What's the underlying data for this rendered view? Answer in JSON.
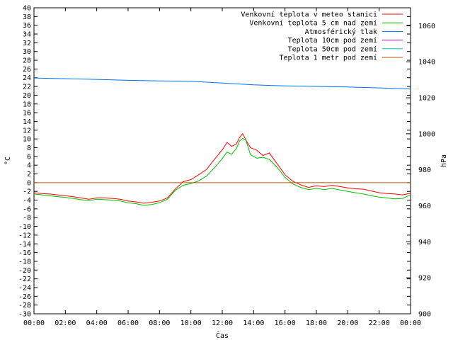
{
  "chart_data": {
    "type": "line",
    "xlabel": "Čas",
    "ylabel_left": "°C",
    "ylabel_right": "hPa",
    "x_ticks": [
      "00:00",
      "02:00",
      "04:00",
      "06:00",
      "08:00",
      "10:00",
      "12:00",
      "14:00",
      "16:00",
      "18:00",
      "20:00",
      "22:00",
      "00:00"
    ],
    "x_range": [
      0,
      24
    ],
    "ylim_left": [
      -30,
      40
    ],
    "ylim_right": [
      900,
      1070
    ],
    "y_ticks_left": [
      40,
      38,
      36,
      34,
      32,
      30,
      28,
      26,
      24,
      22,
      20,
      18,
      16,
      14,
      12,
      10,
      8,
      6,
      4,
      2,
      0,
      -2,
      -4,
      -6,
      -8,
      -10,
      -12,
      -14,
      -16,
      -18,
      -20,
      -22,
      -24,
      -26,
      -28,
      -30
    ],
    "y_ticks_right": [
      1060,
      1040,
      1020,
      1000,
      980,
      960,
      940,
      920,
      900
    ],
    "legend_position": "top-right",
    "grid": false,
    "series": [
      {
        "name": "Venkovní teplota v meteo stanici",
        "color": "#ff0000",
        "axis": "left",
        "x": [
          0,
          0.5,
          1,
          1.5,
          2,
          2.5,
          3,
          3.5,
          4,
          4.5,
          5,
          5.5,
          6,
          6.5,
          7,
          7.5,
          8,
          8.5,
          9,
          9.5,
          10,
          10.5,
          11,
          11.5,
          12,
          12.3,
          12.6,
          12.9,
          13.1,
          13.3,
          13.5,
          13.8,
          14.2,
          14.6,
          15,
          15.5,
          16,
          16.5,
          17,
          17.5,
          18,
          18.5,
          19,
          19.5,
          20,
          20.5,
          21,
          21.5,
          22,
          22.5,
          23,
          23.5,
          24
        ],
        "values": [
          -2.3,
          -2.5,
          -2.6,
          -2.8,
          -3.0,
          -3.2,
          -3.5,
          -3.8,
          -3.5,
          -3.5,
          -3.6,
          -3.8,
          -4.2,
          -4.4,
          -4.7,
          -4.5,
          -4.2,
          -3.5,
          -1.5,
          0.2,
          0.7,
          1.8,
          3.0,
          5.3,
          7.5,
          9.2,
          8.3,
          8.8,
          10.3,
          11.2,
          9.8,
          8.0,
          7.4,
          6.2,
          6.8,
          4.3,
          1.8,
          0.3,
          -0.5,
          -1.1,
          -0.7,
          -0.9,
          -0.6,
          -0.9,
          -1.2,
          -1.4,
          -1.5,
          -1.9,
          -2.3,
          -2.5,
          -2.6,
          -2.8,
          -2.4
        ]
      },
      {
        "name": "Venkovní teplota 5 cm nad zemí",
        "color": "#00c000",
        "axis": "left",
        "x": [
          0,
          0.5,
          1,
          1.5,
          2,
          2.5,
          3,
          3.5,
          4,
          4.5,
          5,
          5.5,
          6,
          6.5,
          7,
          7.5,
          8,
          8.5,
          9,
          9.5,
          10,
          10.5,
          11,
          11.5,
          12,
          12.3,
          12.6,
          12.9,
          13.1,
          13.3,
          13.5,
          13.8,
          14.2,
          14.6,
          15,
          15.5,
          16,
          16.5,
          17,
          17.5,
          18,
          18.5,
          19,
          19.5,
          20,
          20.5,
          21,
          21.5,
          22,
          22.5,
          23,
          23.5,
          24
        ],
        "values": [
          -2.6,
          -2.8,
          -3.0,
          -3.2,
          -3.4,
          -3.6,
          -3.9,
          -4.1,
          -3.8,
          -3.9,
          -4.0,
          -4.2,
          -4.6,
          -4.8,
          -5.2,
          -5.0,
          -4.6,
          -3.8,
          -1.8,
          -0.6,
          -0.2,
          0.4,
          1.5,
          3.4,
          5.5,
          7.0,
          6.5,
          7.8,
          9.5,
          10.1,
          9.8,
          6.4,
          5.6,
          5.8,
          5.3,
          3.5,
          1.2,
          -0.3,
          -1.1,
          -1.6,
          -1.3,
          -1.6,
          -1.3,
          -1.7,
          -2.0,
          -2.3,
          -2.6,
          -3.0,
          -3.3,
          -3.5,
          -3.7,
          -3.6,
          -2.8
        ]
      },
      {
        "name": "Atmosférický tlak",
        "color": "#0070ff",
        "axis": "right",
        "x": [
          0,
          2,
          4,
          6,
          8,
          10,
          12,
          14,
          16,
          18,
          20,
          22,
          24
        ],
        "values": [
          1031,
          1030.6,
          1030.2,
          1029.7,
          1029.4,
          1029.2,
          1028.2,
          1027.2,
          1026.6,
          1026.3,
          1026.0,
          1025.5,
          1024.9
        ]
      },
      {
        "name": "Teplota 10cm pod zemí",
        "color": "#a000a0",
        "axis": "left",
        "x": [],
        "values": []
      },
      {
        "name": "Teplota 50cm pod zemí",
        "color": "#00c0c0",
        "axis": "left",
        "x": [],
        "values": []
      },
      {
        "name": "Teplota 1 metr pod zemí",
        "color": "#c05000",
        "axis": "left",
        "x": [
          0,
          24
        ],
        "values": [
          0,
          0
        ]
      }
    ]
  }
}
